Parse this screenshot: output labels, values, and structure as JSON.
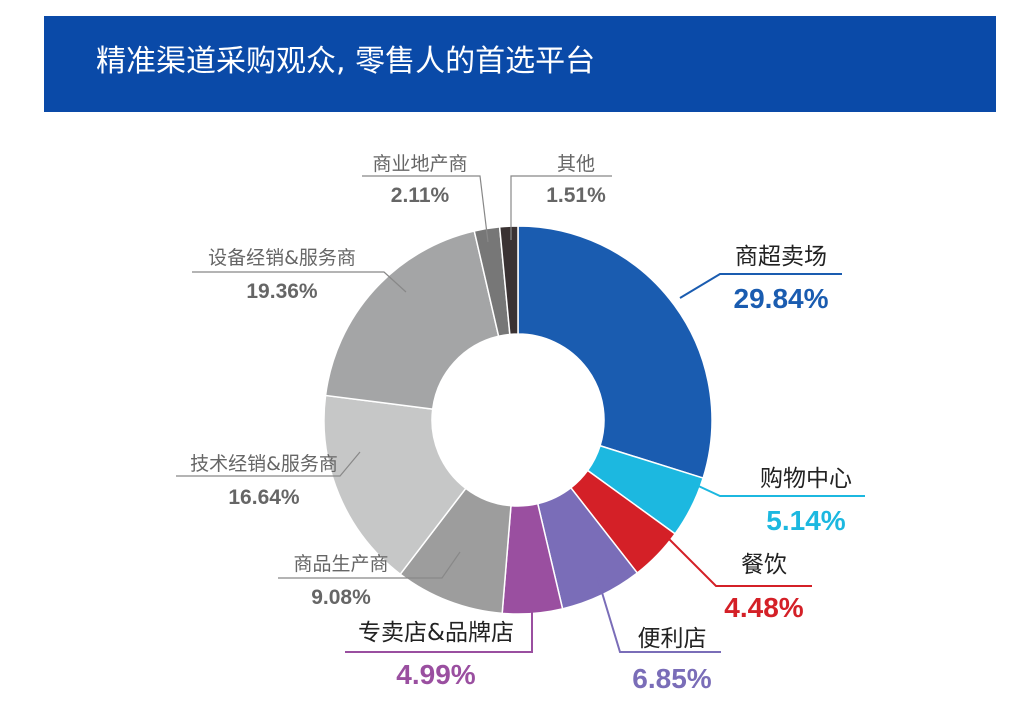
{
  "header": {
    "title": "精准渠道采购观众, 零售人的首选平台",
    "bg_color": "#0a4aa8"
  },
  "chart_data": {
    "type": "pie",
    "donut": true,
    "title": "",
    "slices": [
      {
        "label": "商超卖场",
        "value": 29.84,
        "value_text": "29.84%",
        "color": "#1a5cb0",
        "label_color": "#1a5cb0"
      },
      {
        "label": "购物中心",
        "value": 5.14,
        "value_text": "5.14%",
        "color": "#1cb8e0",
        "label_color": "#1cb8e0"
      },
      {
        "label": "餐饮",
        "value": 4.48,
        "value_text": "4.48%",
        "color": "#d42027",
        "label_color": "#d42027"
      },
      {
        "label": "便利店",
        "value": 6.85,
        "value_text": "6.85%",
        "color": "#7a6db8",
        "label_color": "#7a6db8"
      },
      {
        "label": "专卖店&品牌店",
        "value": 4.99,
        "value_text": "4.99%",
        "color": "#9a4fa0",
        "label_color": "#9a4fa0"
      },
      {
        "label": "商品生产商",
        "value": 9.08,
        "value_text": "9.08%",
        "color": "#9d9d9d",
        "label_color": "#666666"
      },
      {
        "label": "技术经销&服务商",
        "value": 16.64,
        "value_text": "16.64%",
        "color": "#c6c7c7",
        "label_color": "#666666"
      },
      {
        "label": "设备经销&服务商",
        "value": 19.36,
        "value_text": "19.36%",
        "color": "#a4a5a6",
        "label_color": "#666666"
      },
      {
        "label": "商业地产商",
        "value": 2.11,
        "value_text": "2.11%",
        "color": "#777777",
        "label_color": "#666666"
      },
      {
        "label": "其他",
        "value": 1.51,
        "value_text": "1.51%",
        "color": "#3a3233",
        "label_color": "#666666"
      }
    ]
  }
}
